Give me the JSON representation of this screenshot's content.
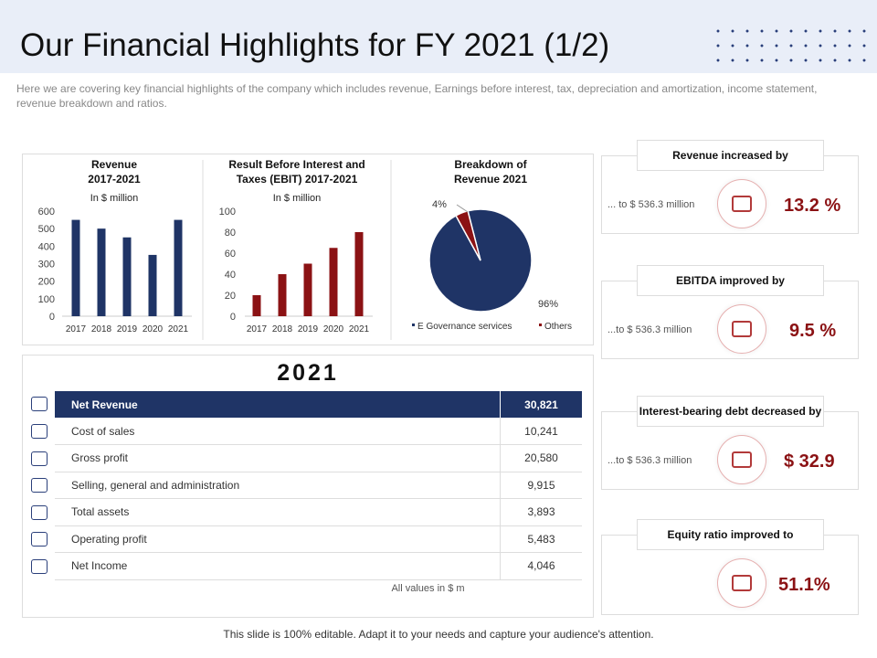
{
  "title": "Our Financial Highlights for FY 2021 (1/2)",
  "subtitle": "Here we are covering key financial highlights of the company which includes revenue, Earnings before interest, tax, depreciation and amortization, income statement, revenue breakdown and ratios.",
  "colors": {
    "navy": "#1f3466",
    "red": "#8b1214"
  },
  "chart_data": [
    {
      "type": "bar",
      "title": "Revenue 2017-2021",
      "title_lines": [
        "Revenue",
        "2017-2021"
      ],
      "subtitle": "In $ million",
      "categories": [
        "2017",
        "2018",
        "2019",
        "2020",
        "2021"
      ],
      "values": [
        550,
        500,
        450,
        350,
        550
      ],
      "ylim": [
        0,
        600
      ],
      "yticks": [
        "0",
        "100",
        "200",
        "300",
        "400",
        "500",
        "600"
      ],
      "color": "#1f3466"
    },
    {
      "type": "bar",
      "title": "Result Before Interest and Taxes (EBIT) 2017-2021",
      "title_lines": [
        "Result Before Interest and",
        "Taxes (EBIT) 2017-2021"
      ],
      "subtitle": "In $ million",
      "categories": [
        "2017",
        "2018",
        "2019",
        "2020",
        "2021"
      ],
      "values": [
        20,
        40,
        50,
        65,
        80
      ],
      "ylim": [
        0,
        100
      ],
      "yticks": [
        "0",
        "20",
        "40",
        "60",
        "80",
        "100"
      ],
      "color": "#8b1214"
    },
    {
      "type": "pie",
      "title": "Breakdown of Revenue 2021",
      "title_lines": [
        "Breakdown of",
        "Revenue 2021"
      ],
      "slices": [
        {
          "name": "E Governance services",
          "value": 96,
          "label": "96%",
          "color": "#1f3466"
        },
        {
          "name": "Others",
          "value": 4,
          "label": "4%",
          "color": "#8b1214"
        }
      ]
    }
  ],
  "table": {
    "year": "2021",
    "header": [
      "Net Revenue",
      "30,821"
    ],
    "rows": [
      [
        "Cost of sales",
        "10,241"
      ],
      [
        "Gross profit",
        "20,580"
      ],
      [
        "Selling, general and administration",
        "9,915"
      ],
      [
        "Total assets",
        "3,893"
      ],
      [
        "Operating profit",
        "5,483"
      ],
      [
        "Net Income",
        "4,046"
      ]
    ],
    "note": "All values in $ m"
  },
  "cards": [
    {
      "heading": "Revenue increased by",
      "sub": "... to $ 536.3 million",
      "value": "13.2 %"
    },
    {
      "heading": "EBITDA improved by",
      "sub": "...to $ 536.3 million",
      "value": "9.5 %"
    },
    {
      "heading": "Interest-bearing debt decreased  by",
      "sub": "...to $ 536.3 million",
      "value": "$ 32.9"
    },
    {
      "heading": "Equity ratio improved to",
      "sub": "",
      "value": "51.1%"
    }
  ],
  "footer": "This slide is 100% editable. Adapt it to your needs and capture your audience's attention."
}
